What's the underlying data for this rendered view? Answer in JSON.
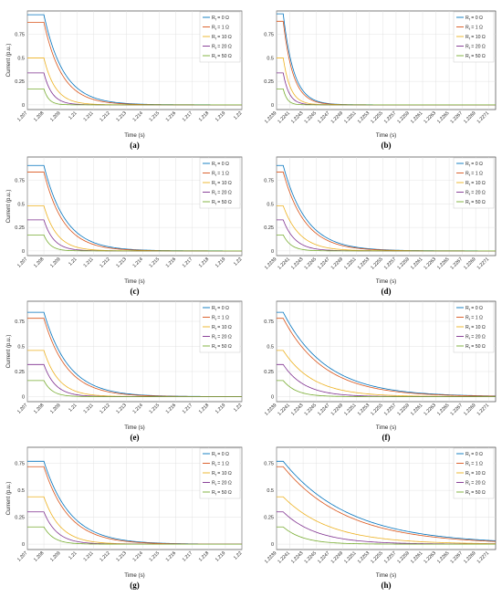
{
  "legend_prefix": "R",
  "legend_subscript": "f",
  "chart_data": [
    {
      "type": "line",
      "panel_label": "(a)",
      "ylabel": "Current (p.u.)",
      "xlabel": "Time (s)",
      "xlim": [
        1.207,
        1.22
      ],
      "ylim": [
        -0.05,
        1.0
      ],
      "xticks": [
        1.207,
        1.208,
        1.209,
        1.21,
        1.211,
        1.212,
        1.213,
        1.214,
        1.215,
        1.216,
        1.217,
        1.218,
        1.219,
        1.22
      ],
      "xtick_labels": [
        "1.207",
        "1.208",
        "1.209",
        "1.21",
        "1.211",
        "1.212",
        "1.213",
        "1.214",
        "1.215",
        "1.216",
        "1.217",
        "1.218",
        "1.219",
        "1.22"
      ],
      "yticks": [
        0,
        0.25,
        0.5,
        0.75
      ],
      "ytick_labels": [
        "0",
        "0.25",
        "0.5",
        "0.75"
      ],
      "grid": true,
      "legend_position": "top-right",
      "fault_time": 1.208,
      "end": 1.22,
      "series": [
        {
          "name": "= 0 Ω",
          "color": "#0072BD",
          "steady": 0.96,
          "tau": 0.0012
        },
        {
          "name": "= 1 Ω",
          "color": "#D95319",
          "steady": 0.88,
          "tau": 0.0011
        },
        {
          "name": "= 10 Ω",
          "color": "#EDB120",
          "steady": 0.5,
          "tau": 0.0007
        },
        {
          "name": "= 20 Ω",
          "color": "#7E2F8E",
          "steady": 0.34,
          "tau": 0.0005
        },
        {
          "name": "= 50 Ω",
          "color": "#77AC30",
          "steady": 0.17,
          "tau": 0.0003
        }
      ]
    },
    {
      "type": "line",
      "panel_label": "(b)",
      "ylabel": "",
      "xlabel": "Time (s)",
      "xlim": [
        1.2239,
        1.2272
      ],
      "ylim": [
        -0.05,
        1.0
      ],
      "xticks": [
        1.2239,
        1.2241,
        1.2243,
        1.2245,
        1.2247,
        1.2249,
        1.2251,
        1.2253,
        1.2255,
        1.2257,
        1.2259,
        1.2261,
        1.2263,
        1.2265,
        1.2267,
        1.2269,
        1.2271
      ],
      "xtick_labels": [
        "1.2239",
        "1.2241",
        "1.2243",
        "1.2245",
        "1.2247",
        "1.2249",
        "1.2251",
        "1.2253",
        "1.2255",
        "1.2257",
        "1.2259",
        "1.2261",
        "1.2263",
        "1.2265",
        "1.2267",
        "1.2269",
        "1.2271"
      ],
      "yticks": [
        0,
        0.25,
        0.5,
        0.75
      ],
      "ytick_labels": [
        "0",
        "0.25",
        "0.5",
        "0.75"
      ],
      "grid": true,
      "legend_position": "top-right",
      "fault_time": 1.224,
      "end": 1.2272,
      "series": [
        {
          "name": "= 0 Ω",
          "color": "#0072BD",
          "steady": 0.97,
          "tau": 0.00016
        },
        {
          "name": "= 1 Ω",
          "color": "#D95319",
          "steady": 0.89,
          "tau": 0.00015
        },
        {
          "name": "= 10 Ω",
          "color": "#EDB120",
          "steady": 0.5,
          "tau": 0.00011
        },
        {
          "name": "= 20 Ω",
          "color": "#7E2F8E",
          "steady": 0.34,
          "tau": 9e-05
        },
        {
          "name": "= 50 Ω",
          "color": "#77AC30",
          "steady": 0.17,
          "tau": 6e-05
        }
      ]
    },
    {
      "type": "line",
      "panel_label": "(c)",
      "ylabel": "Current (p.u.)",
      "xlabel": "Time (s)",
      "xlim": [
        1.207,
        1.22
      ],
      "ylim": [
        -0.05,
        1.0
      ],
      "xticks": [
        1.207,
        1.208,
        1.209,
        1.21,
        1.211,
        1.212,
        1.213,
        1.214,
        1.215,
        1.216,
        1.217,
        1.218,
        1.219,
        1.22
      ],
      "xtick_labels": [
        "1.207",
        "1.208",
        "1.209",
        "1.21",
        "1.211",
        "1.212",
        "1.213",
        "1.214",
        "1.215",
        "1.216",
        "1.217",
        "1.218",
        "1.219",
        "1.22"
      ],
      "yticks": [
        0,
        0.25,
        0.5,
        0.75
      ],
      "ytick_labels": [
        "0",
        "0.25",
        "0.5",
        "0.75"
      ],
      "grid": true,
      "legend_position": "top-right",
      "fault_time": 1.208,
      "end": 1.22,
      "series": [
        {
          "name": "= 0 Ω",
          "color": "#0072BD",
          "steady": 0.91,
          "tau": 0.0013
        },
        {
          "name": "= 1 Ω",
          "color": "#D95319",
          "steady": 0.84,
          "tau": 0.0012
        },
        {
          "name": "= 10 Ω",
          "color": "#EDB120",
          "steady": 0.48,
          "tau": 0.0008
        },
        {
          "name": "= 20 Ω",
          "color": "#7E2F8E",
          "steady": 0.33,
          "tau": 0.0006
        },
        {
          "name": "= 50 Ω",
          "color": "#77AC30",
          "steady": 0.17,
          "tau": 0.0004
        }
      ]
    },
    {
      "type": "line",
      "panel_label": "(d)",
      "ylabel": "",
      "xlabel": "Time (s)",
      "xlim": [
        1.2239,
        1.2272
      ],
      "ylim": [
        -0.05,
        1.0
      ],
      "xticks": [
        1.2239,
        1.2241,
        1.2243,
        1.2245,
        1.2247,
        1.2249,
        1.2251,
        1.2253,
        1.2255,
        1.2257,
        1.2259,
        1.2261,
        1.2263,
        1.2265,
        1.2267,
        1.2269,
        1.2271
      ],
      "xtick_labels": [
        "1.2239",
        "1.2241",
        "1.2243",
        "1.2245",
        "1.2247",
        "1.2249",
        "1.2251",
        "1.2253",
        "1.2255",
        "1.2257",
        "1.2259",
        "1.2261",
        "1.2263",
        "1.2265",
        "1.2267",
        "1.2269",
        "1.2271"
      ],
      "yticks": [
        0,
        0.25,
        0.5,
        0.75
      ],
      "ytick_labels": [
        "0",
        "0.25",
        "0.5",
        "0.75"
      ],
      "grid": true,
      "legend_position": "top-right",
      "fault_time": 1.224,
      "end": 1.2272,
      "series": [
        {
          "name": "= 0 Ω",
          "color": "#0072BD",
          "steady": 0.91,
          "tau": 0.00035
        },
        {
          "name": "= 1 Ω",
          "color": "#D95319",
          "steady": 0.84,
          "tau": 0.00033
        },
        {
          "name": "= 10 Ω",
          "color": "#EDB120",
          "steady": 0.48,
          "tau": 0.00025
        },
        {
          "name": "= 20 Ω",
          "color": "#7E2F8E",
          "steady": 0.33,
          "tau": 0.00018
        },
        {
          "name": "= 50 Ω",
          "color": "#77AC30",
          "steady": 0.17,
          "tau": 0.00012
        }
      ]
    },
    {
      "type": "line",
      "panel_label": "(e)",
      "ylabel": "Current (p.u.)",
      "xlabel": "Time (s)",
      "xlim": [
        1.207,
        1.22
      ],
      "ylim": [
        -0.05,
        0.95
      ],
      "xticks": [
        1.207,
        1.208,
        1.209,
        1.21,
        1.211,
        1.212,
        1.213,
        1.214,
        1.215,
        1.216,
        1.217,
        1.218,
        1.219,
        1.22
      ],
      "xtick_labels": [
        "1.207",
        "1.208",
        "1.209",
        "1.21",
        "1.211",
        "1.212",
        "1.213",
        "1.214",
        "1.215",
        "1.216",
        "1.217",
        "1.218",
        "1.219",
        "1.22"
      ],
      "yticks": [
        0,
        0.25,
        0.5,
        0.75
      ],
      "ytick_labels": [
        "0",
        "0.25",
        "0.5",
        "0.75"
      ],
      "grid": true,
      "legend_position": "top-right",
      "fault_time": 1.208,
      "end": 1.22,
      "series": [
        {
          "name": "= 0 Ω",
          "color": "#0072BD",
          "steady": 0.84,
          "tau": 0.0015
        },
        {
          "name": "= 1 Ω",
          "color": "#D95319",
          "steady": 0.78,
          "tau": 0.0014
        },
        {
          "name": "= 10 Ω",
          "color": "#EDB120",
          "steady": 0.46,
          "tau": 0.0009
        },
        {
          "name": "= 20 Ω",
          "color": "#7E2F8E",
          "steady": 0.32,
          "tau": 0.0007
        },
        {
          "name": "= 50 Ω",
          "color": "#77AC30",
          "steady": 0.16,
          "tau": 0.0005
        }
      ]
    },
    {
      "type": "line",
      "panel_label": "(f)",
      "ylabel": "",
      "xlabel": "Time (s)",
      "xlim": [
        1.2239,
        1.2272
      ],
      "ylim": [
        -0.05,
        0.95
      ],
      "xticks": [
        1.2239,
        1.2241,
        1.2243,
        1.2245,
        1.2247,
        1.2249,
        1.2251,
        1.2253,
        1.2255,
        1.2257,
        1.2259,
        1.2261,
        1.2263,
        1.2265,
        1.2267,
        1.2269,
        1.2271
      ],
      "xtick_labels": [
        "1.2239",
        "1.2241",
        "1.2243",
        "1.2245",
        "1.2247",
        "1.2249",
        "1.2251",
        "1.2253",
        "1.2255",
        "1.2257",
        "1.2259",
        "1.2261",
        "1.2263",
        "1.2265",
        "1.2267",
        "1.2269",
        "1.2271"
      ],
      "yticks": [
        0,
        0.25,
        0.5,
        0.75
      ],
      "ytick_labels": [
        "0",
        "0.25",
        "0.5",
        "0.75"
      ],
      "grid": true,
      "legend_position": "top-right",
      "fault_time": 1.224,
      "end": 1.2272,
      "series": [
        {
          "name": "= 0 Ω",
          "color": "#0072BD",
          "steady": 0.84,
          "tau": 0.00065
        },
        {
          "name": "= 1 Ω",
          "color": "#D95319",
          "steady": 0.78,
          "tau": 0.00062
        },
        {
          "name": "= 10 Ω",
          "color": "#EDB120",
          "steady": 0.46,
          "tau": 0.00045
        },
        {
          "name": "= 20 Ω",
          "color": "#7E2F8E",
          "steady": 0.32,
          "tau": 0.00032
        },
        {
          "name": "= 50 Ω",
          "color": "#77AC30",
          "steady": 0.16,
          "tau": 0.0002
        }
      ]
    },
    {
      "type": "line",
      "panel_label": "(g)",
      "ylabel": "Current (p.u.)",
      "xlabel": "Time (s)",
      "xlim": [
        1.207,
        1.22
      ],
      "ylim": [
        -0.05,
        0.9
      ],
      "xticks": [
        1.207,
        1.208,
        1.209,
        1.21,
        1.211,
        1.212,
        1.213,
        1.214,
        1.215,
        1.216,
        1.217,
        1.218,
        1.219,
        1.22
      ],
      "xtick_labels": [
        "1.207",
        "1.208",
        "1.209",
        "1.21",
        "1.211",
        "1.212",
        "1.213",
        "1.214",
        "1.215",
        "1.216",
        "1.217",
        "1.218",
        "1.219",
        "1.22"
      ],
      "yticks": [
        0,
        0.25,
        0.5,
        0.75
      ],
      "ytick_labels": [
        "0",
        "0.25",
        "0.5",
        "0.75"
      ],
      "grid": true,
      "legend_position": "top-right",
      "fault_time": 1.208,
      "end": 1.22,
      "series": [
        {
          "name": "= 0 Ω",
          "color": "#0072BD",
          "steady": 0.77,
          "tau": 0.0016
        },
        {
          "name": "= 1 Ω",
          "color": "#D95319",
          "steady": 0.72,
          "tau": 0.0015
        },
        {
          "name": "= 10 Ω",
          "color": "#EDB120",
          "steady": 0.44,
          "tau": 0.001
        },
        {
          "name": "= 20 Ω",
          "color": "#7E2F8E",
          "steady": 0.3,
          "tau": 0.0008
        },
        {
          "name": "= 50 Ω",
          "color": "#77AC30",
          "steady": 0.16,
          "tau": 0.0006
        }
      ]
    },
    {
      "type": "line",
      "panel_label": "(h)",
      "ylabel": "",
      "xlabel": "Time (s)",
      "xlim": [
        1.2239,
        1.2272
      ],
      "ylim": [
        -0.05,
        0.9
      ],
      "xticks": [
        1.2239,
        1.2241,
        1.2243,
        1.2245,
        1.2247,
        1.2249,
        1.2251,
        1.2253,
        1.2255,
        1.2257,
        1.2259,
        1.2261,
        1.2263,
        1.2265,
        1.2267,
        1.2269,
        1.2271
      ],
      "xtick_labels": [
        "1.2239",
        "1.2241",
        "1.2243",
        "1.2245",
        "1.2247",
        "1.2249",
        "1.2251",
        "1.2253",
        "1.2255",
        "1.2257",
        "1.2259",
        "1.2261",
        "1.2263",
        "1.2265",
        "1.2267",
        "1.2269",
        "1.2271"
      ],
      "yticks": [
        0,
        0.25,
        0.5,
        0.75
      ],
      "ytick_labels": [
        "0",
        "0.25",
        "0.5",
        "0.75"
      ],
      "grid": true,
      "legend_position": "top-right",
      "fault_time": 1.224,
      "end": 1.2272,
      "series": [
        {
          "name": "= 0 Ω",
          "color": "#0072BD",
          "steady": 0.77,
          "tau": 0.001
        },
        {
          "name": "= 1 Ω",
          "color": "#D95319",
          "steady": 0.72,
          "tau": 0.00095
        },
        {
          "name": "= 10 Ω",
          "color": "#EDB120",
          "steady": 0.44,
          "tau": 0.0007
        },
        {
          "name": "= 20 Ω",
          "color": "#7E2F8E",
          "steady": 0.3,
          "tau": 0.0005
        },
        {
          "name": "= 50 Ω",
          "color": "#77AC30",
          "steady": 0.16,
          "tau": 0.0003
        }
      ]
    }
  ]
}
